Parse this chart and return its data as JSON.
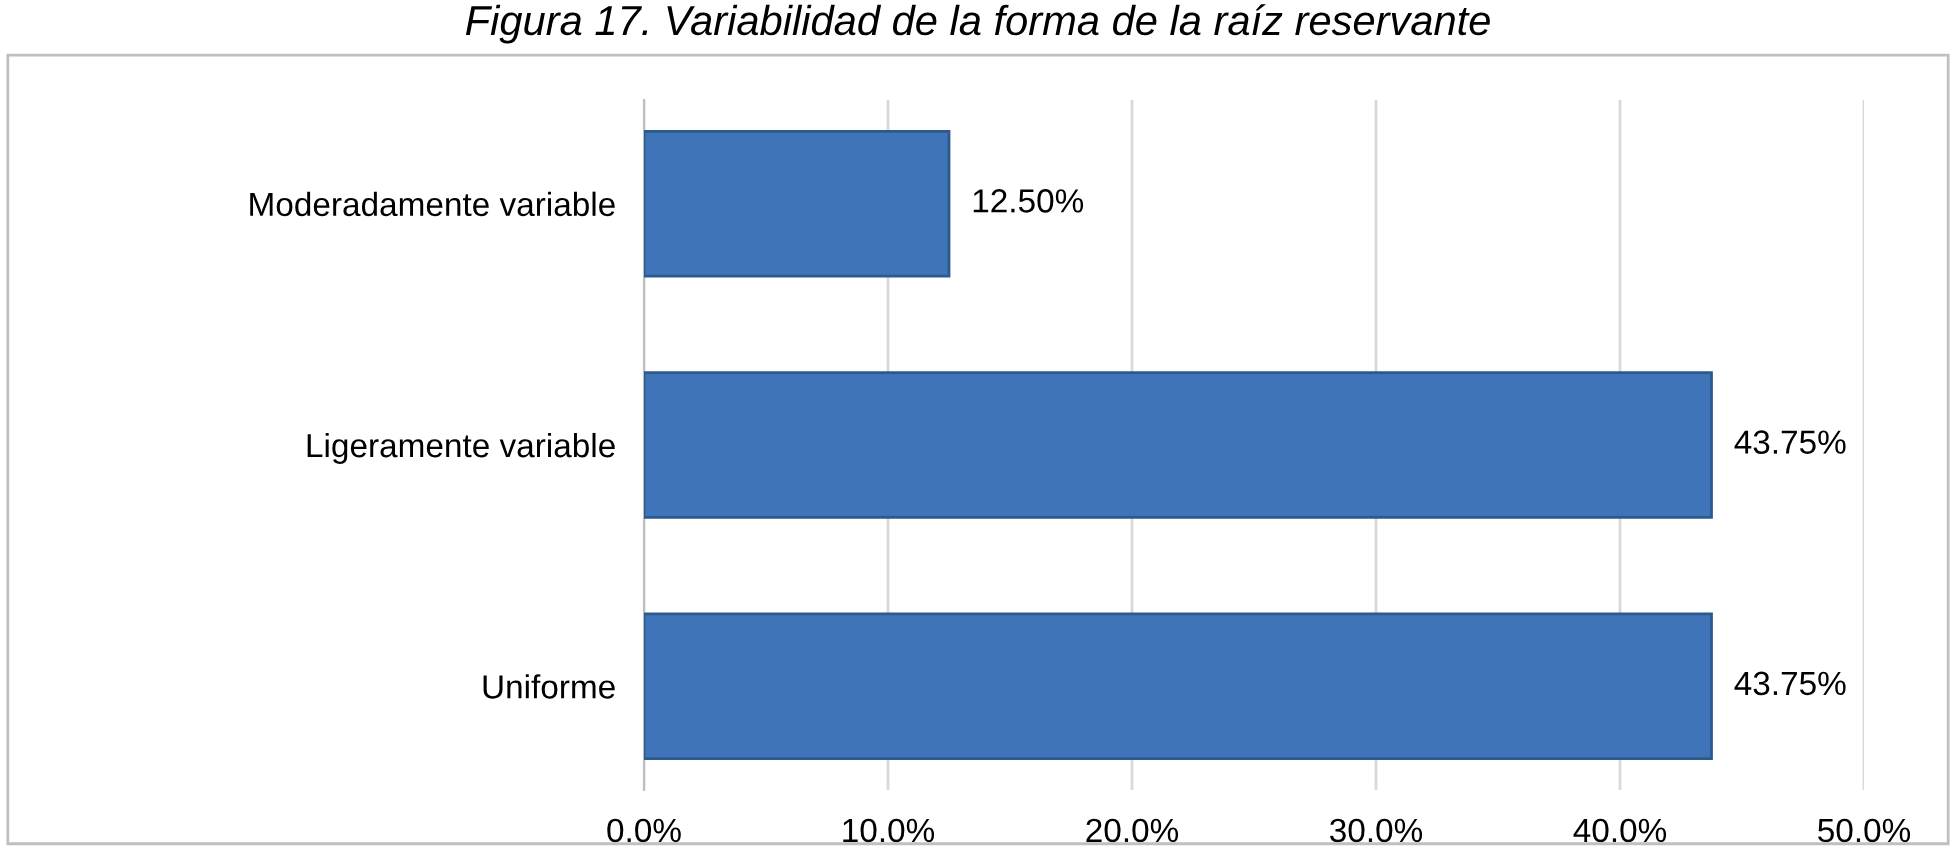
{
  "chart_data": {
    "type": "bar",
    "orientation": "horizontal",
    "title": "Figura 17. Variabilidad de la forma de la raíz reservante",
    "categories": [
      "Moderadamente variable",
      "Ligeramente variable",
      "Uniforme"
    ],
    "values": [
      12.5,
      43.75,
      43.75
    ],
    "color": "#3f74b8",
    "value_labels": [
      "12.50%",
      "43.75%",
      "43.75%"
    ],
    "xlim": [
      0,
      50
    ],
    "xticks": [
      {
        "value": 0,
        "label": "0.0%"
      },
      {
        "value": 10,
        "label": "10.0%"
      },
      {
        "value": 20,
        "label": "20.0%"
      },
      {
        "value": 30,
        "label": "30.0%"
      },
      {
        "value": 40,
        "label": "40.0%"
      },
      {
        "value": 50,
        "label": "50.0%"
      }
    ],
    "grid": "x",
    "legend": false
  }
}
